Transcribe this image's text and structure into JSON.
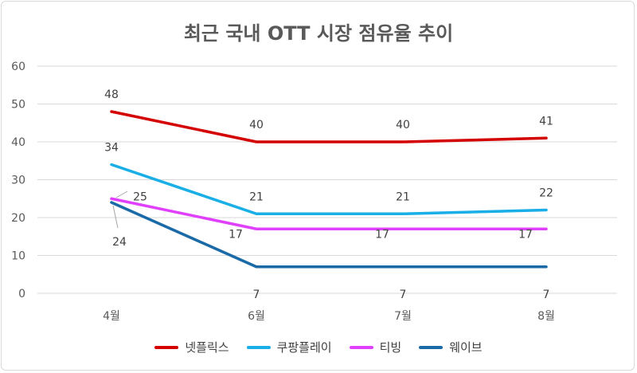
{
  "chart_data": {
    "type": "line",
    "title": "최근 국내 OTT 시장 점유율 추이",
    "categories": [
      "4월",
      "6월",
      "7월",
      "8월"
    ],
    "ylim": [
      0,
      60
    ],
    "yticks": [
      0,
      10,
      20,
      30,
      40,
      50,
      60
    ],
    "grid": true,
    "legend_position": "bottom",
    "series": [
      {
        "name": "넷플릭스",
        "color": "#d40000",
        "values": [
          48,
          40,
          40,
          41
        ]
      },
      {
        "name": "쿠팡플레이",
        "color": "#19aee6",
        "values": [
          34,
          21,
          21,
          22
        ]
      },
      {
        "name": "티빙",
        "color": "#e040fb",
        "values": [
          25,
          17,
          17,
          17
        ]
      },
      {
        "name": "웨이브",
        "color": "#1b6aa8",
        "values": [
          24,
          7,
          7,
          7
        ]
      }
    ]
  }
}
